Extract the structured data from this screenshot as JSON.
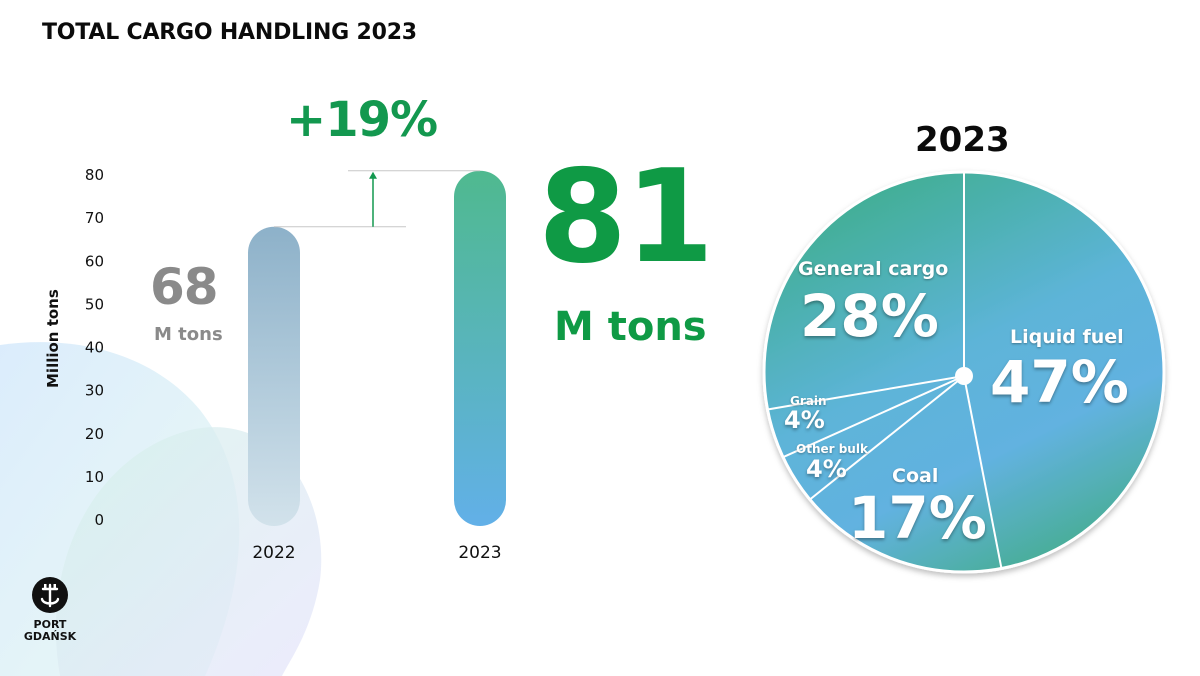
{
  "title": "TOTAL CARGO HANDLING 2023",
  "bar_panel": {
    "growth_label": "+19%",
    "value_2022_label": "68",
    "unit_2022_label": "M tons",
    "value_2023_label": "81",
    "unit_2023_label": "M tons"
  },
  "pie_panel": {
    "year_label": "2023"
  },
  "logo": {
    "line1": "PORT",
    "line2": "GDAŃSK"
  },
  "colors": {
    "growth_green": "#13984f",
    "value_green": "#0f9a45",
    "grey": "#8a8a8a",
    "pie_teal": "#3fae8f",
    "pie_blue": "#62b2e0"
  },
  "chart_data": [
    {
      "type": "bar",
      "categories": [
        "2022",
        "2023"
      ],
      "values": [
        68,
        81
      ],
      "ylabel": "Million tons",
      "ylim": [
        0,
        80
      ],
      "yticks": [
        0,
        10,
        20,
        30,
        40,
        50,
        60,
        70,
        80
      ],
      "grid": false
    },
    {
      "type": "pie",
      "title": "2023",
      "slices": [
        {
          "label": "Liquid fuel",
          "value": 47,
          "value_label": "47%"
        },
        {
          "label": "Coal",
          "value": 17,
          "value_label": "17%"
        },
        {
          "label": "Other bulk",
          "value": 4,
          "value_label": "4%"
        },
        {
          "label": "Grain",
          "value": 4,
          "value_label": "4%"
        },
        {
          "label": "General cargo",
          "value": 28,
          "value_label": "28%"
        }
      ]
    }
  ]
}
